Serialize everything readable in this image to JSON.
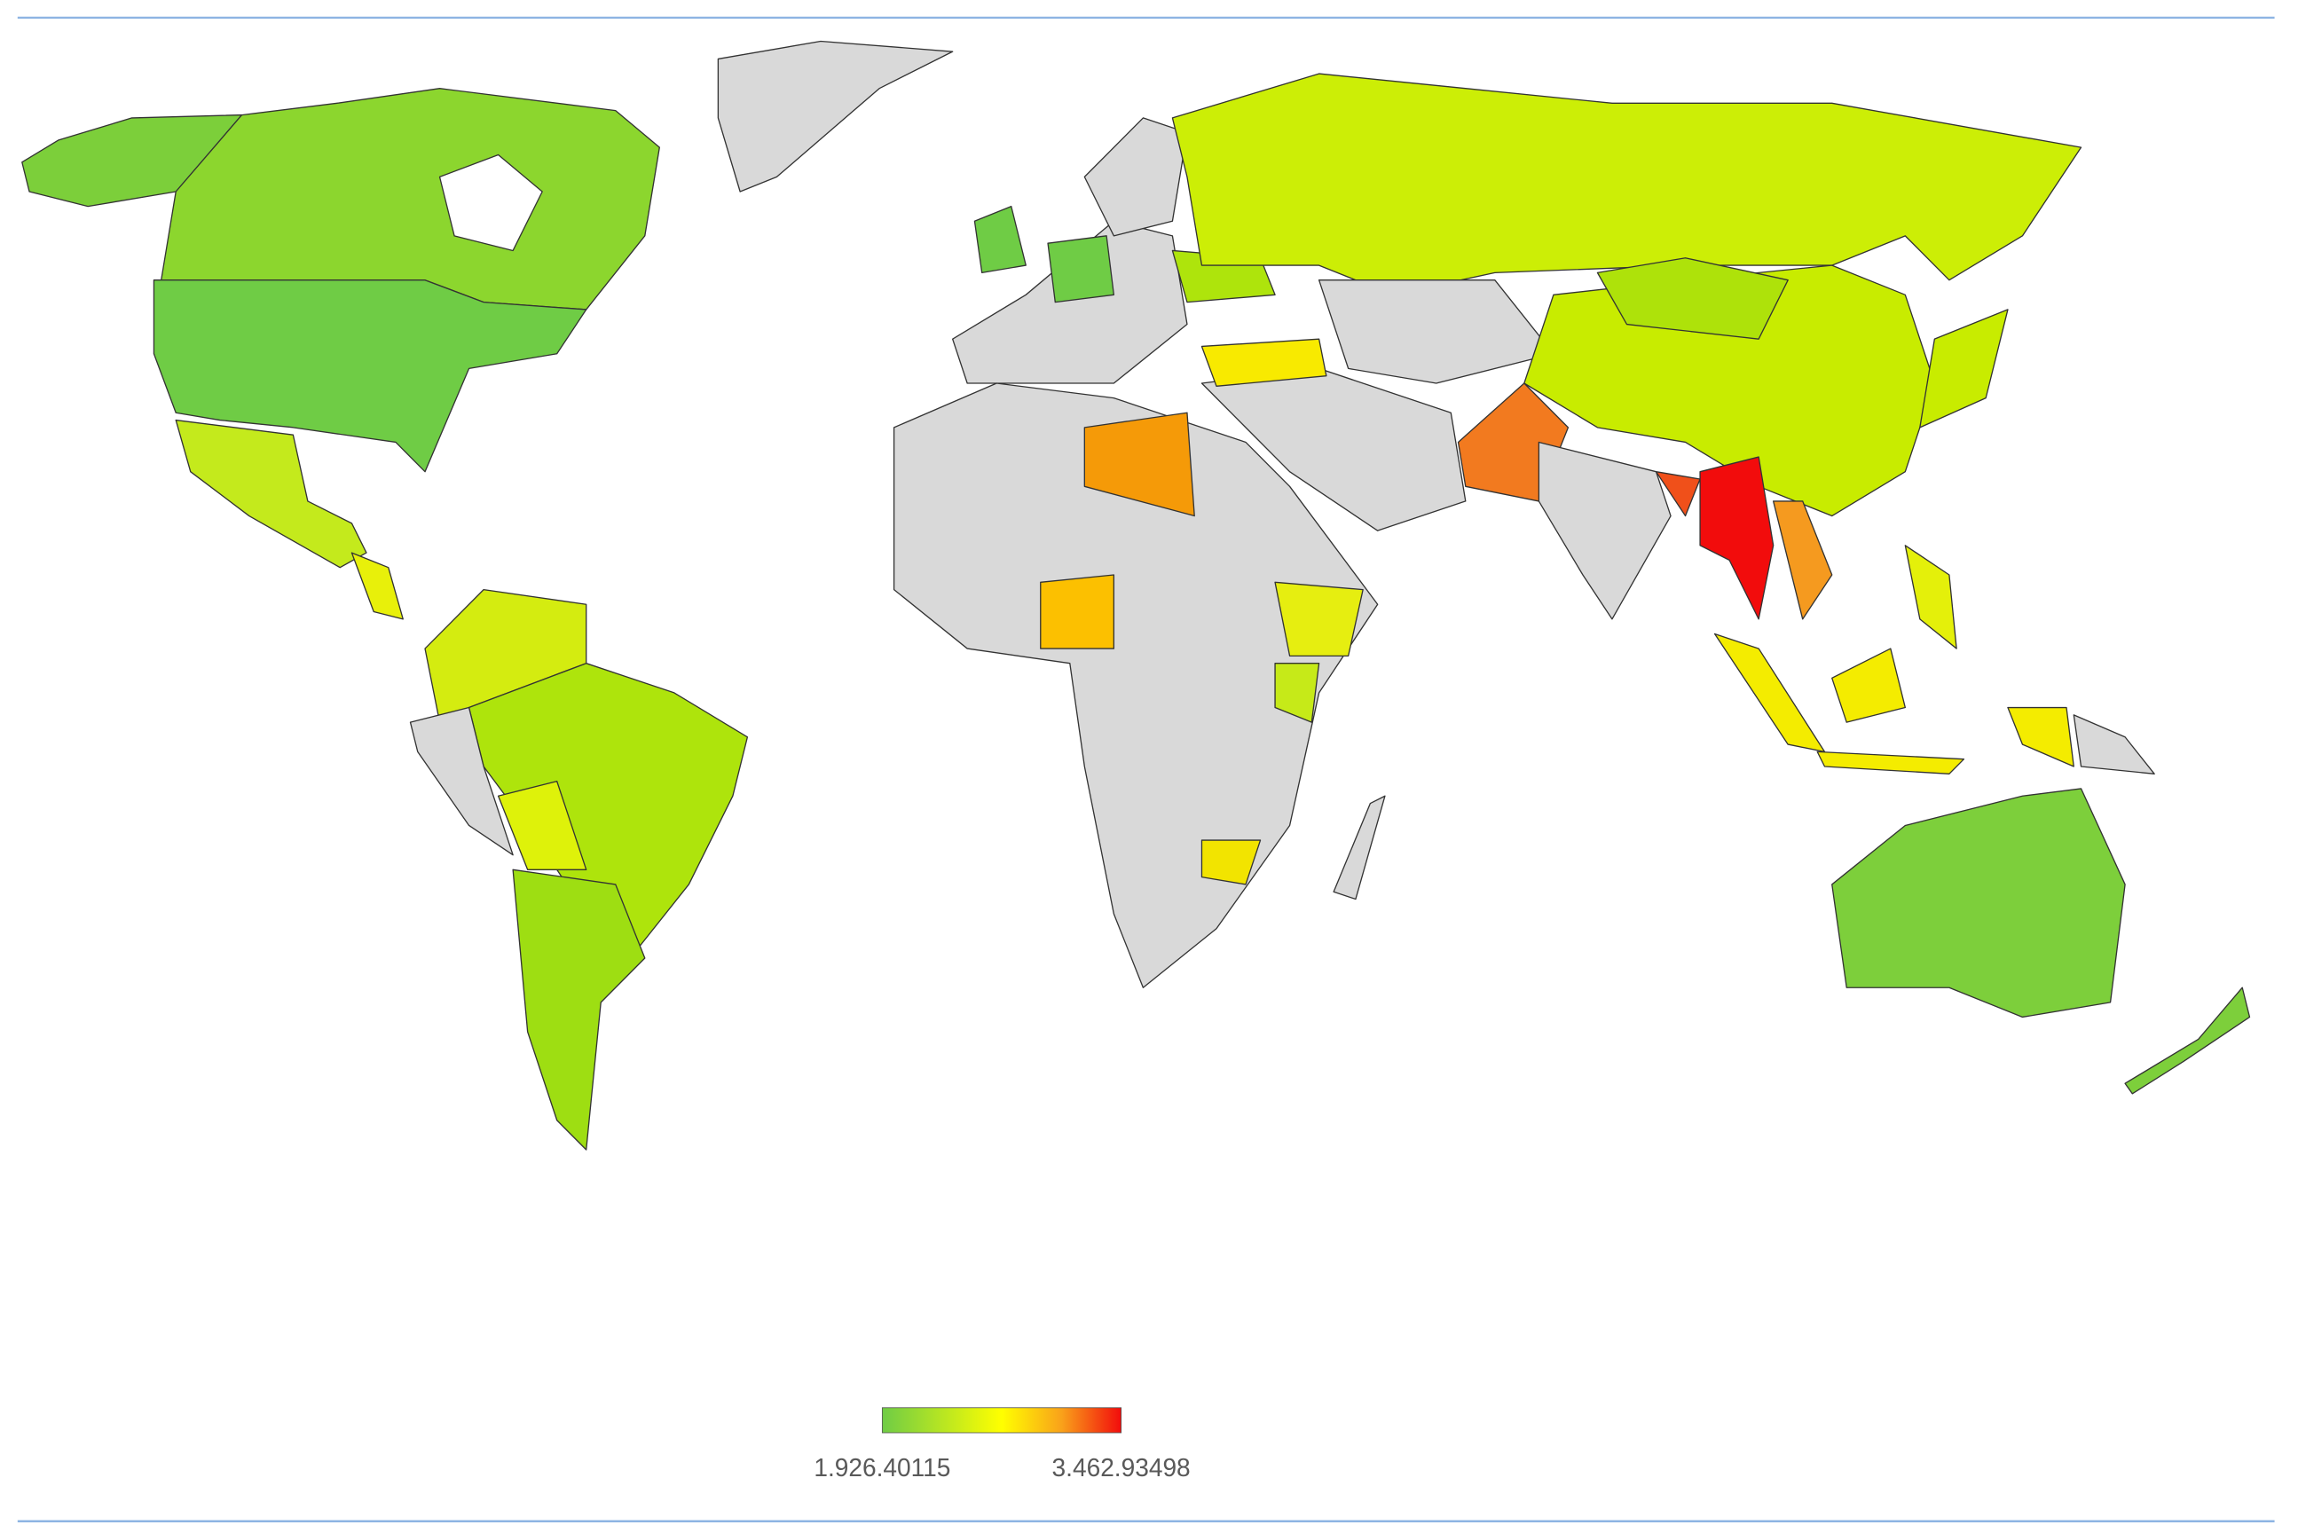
{
  "legend": {
    "labels": [
      "1.926.40115",
      "3.462.93498"
    ]
  }
}
